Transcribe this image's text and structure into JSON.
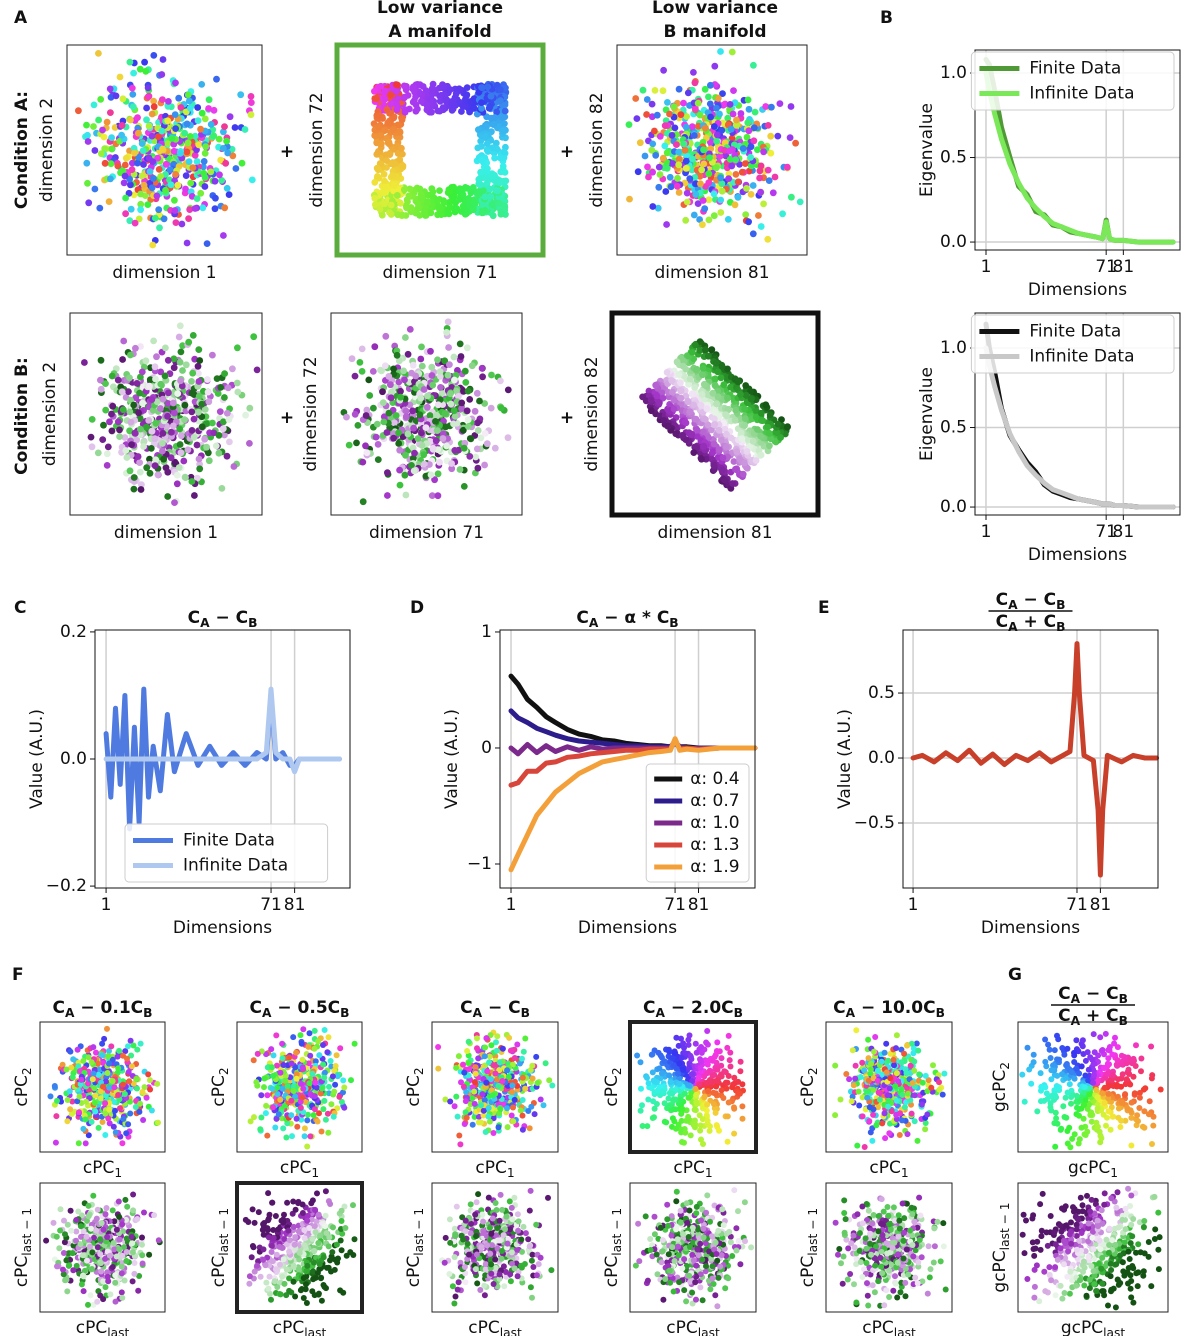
{
  "figure": {
    "panel_letters": [
      "A",
      "B",
      "C",
      "D",
      "E",
      "F",
      "G"
    ],
    "plus": "+",
    "panel_a": {
      "row_labels": [
        "Condition A:",
        "Condition B:"
      ],
      "highlight_color": "#5aad3c",
      "manifold_titles": [
        [
          "Low variance",
          "A manifold"
        ],
        [
          "Low variance",
          "B manifold"
        ]
      ],
      "axis_labels": [
        [
          "dimension 1",
          "dimension 2"
        ],
        [
          "dimension 71",
          "dimension 72"
        ],
        [
          "dimension 81",
          "dimension 82"
        ]
      ]
    },
    "panel_f": {
      "titles": [
        [
          {
            "text": "C"
          },
          {
            "text": "A",
            "sub": true
          },
          {
            "text": " − 0.1C"
          },
          {
            "text": "B",
            "sub": true
          }
        ],
        [
          {
            "text": "C"
          },
          {
            "text": "A",
            "sub": true
          },
          {
            "text": " − 0.5C"
          },
          {
            "text": "B",
            "sub": true
          }
        ],
        [
          {
            "text": "C"
          },
          {
            "text": "A",
            "sub": true
          },
          {
            "text": " − C"
          },
          {
            "text": "B",
            "sub": true
          }
        ],
        [
          {
            "text": "C"
          },
          {
            "text": "A",
            "sub": true
          },
          {
            "text": " − 2.0C"
          },
          {
            "text": "B",
            "sub": true
          }
        ],
        [
          {
            "text": "C"
          },
          {
            "text": "A",
            "sub": true
          },
          {
            "text": " − 10.0C"
          },
          {
            "text": "B",
            "sub": true
          }
        ]
      ],
      "xlabel_top": [
        {
          "text": "cPC"
        },
        {
          "text": "1",
          "sub": true
        }
      ],
      "ylabel_top": [
        {
          "text": "cPC"
        },
        {
          "text": "2",
          "sub": true
        }
      ],
      "xlabel_bottom": [
        {
          "text": "cPC"
        },
        {
          "text": "last",
          "sub": true
        }
      ],
      "ylabel_bottom": [
        {
          "text": "cPC"
        },
        {
          "text": "last − 1",
          "sub": true
        }
      ]
    },
    "panel_g": {
      "title_numerator": [
        {
          "text": "C"
        },
        {
          "text": "A",
          "sub": true
        },
        {
          "text": " − C"
        },
        {
          "text": "B",
          "sub": true
        }
      ],
      "title_denominator": [
        {
          "text": "C"
        },
        {
          "text": "A",
          "sub": true
        },
        {
          "text": " + C"
        },
        {
          "text": "B",
          "sub": true
        }
      ],
      "xlabel_top": [
        {
          "text": "gcPC"
        },
        {
          "text": "1",
          "sub": true
        }
      ],
      "ylabel_top": [
        {
          "text": "gcPC"
        },
        {
          "text": "2",
          "sub": true
        }
      ],
      "xlabel_bottom": [
        {
          "text": "gcPC"
        },
        {
          "text": "last",
          "sub": true
        }
      ],
      "ylabel_bottom": [
        {
          "text": "gcPC"
        },
        {
          "text": "last − 1",
          "sub": true
        }
      ]
    }
  },
  "chart_data": [
    {
      "type": "line",
      "xlabel": "Dimensions",
      "ylabel": "Eigenvalue",
      "x": [
        1,
        3,
        6,
        10,
        15,
        20,
        25,
        30,
        35,
        40,
        45,
        50,
        55,
        60,
        65,
        69,
        71,
        73,
        76,
        81,
        90,
        100,
        110
      ],
      "series": [
        {
          "name": "Finite Data",
          "color": "#4f9a36",
          "values": [
            1.08,
            1.05,
            0.9,
            0.68,
            0.5,
            0.33,
            0.28,
            0.18,
            0.16,
            0.1,
            0.09,
            0.06,
            0.05,
            0.04,
            0.03,
            0.02,
            0.13,
            0.02,
            0.01,
            0.01,
            0,
            0,
            0
          ]
        },
        {
          "name": "Infinite Data",
          "color": "#7be85a",
          "values": [
            1.0,
            0.89,
            0.76,
            0.61,
            0.46,
            0.35,
            0.26,
            0.2,
            0.15,
            0.11,
            0.09,
            0.07,
            0.05,
            0.04,
            0.03,
            0.02,
            0.12,
            0.02,
            0.01,
            0.01,
            0,
            0,
            0
          ]
        }
      ],
      "xlim": [
        -5.4,
        114
      ],
      "ylim": [
        -0.047,
        1.136
      ],
      "xticks": [
        1,
        71,
        81
      ],
      "yticks": [
        {
          "value": 0,
          "label": "0.0"
        },
        {
          "value": 0.5,
          "label": "0.5"
        },
        {
          "value": 1,
          "label": "1.0"
        }
      ],
      "grid": "both",
      "legend": "upper right"
    },
    {
      "type": "line",
      "xlabel": "Dimensions",
      "ylabel": "Eigenvalue",
      "x": [
        1,
        3,
        6,
        10,
        15,
        20,
        25,
        30,
        35,
        40,
        45,
        50,
        55,
        60,
        65,
        69,
        71,
        73,
        76,
        81,
        90,
        100,
        110
      ],
      "series": [
        {
          "name": "Finite Data",
          "color": "#111111",
          "values": [
            1.15,
            1.0,
            0.85,
            0.62,
            0.45,
            0.36,
            0.28,
            0.22,
            0.14,
            0.1,
            0.08,
            0.06,
            0.05,
            0.04,
            0.03,
            0.02,
            0.02,
            0.02,
            0.01,
            0.01,
            0,
            0,
            0
          ]
        },
        {
          "name": "Infinite Data",
          "color": "#c8c8c8",
          "values": [
            1.0,
            0.89,
            0.76,
            0.61,
            0.46,
            0.35,
            0.26,
            0.2,
            0.15,
            0.11,
            0.09,
            0.07,
            0.05,
            0.04,
            0.03,
            0.02,
            0.02,
            0.02,
            0.01,
            0.01,
            0,
            0,
            0
          ]
        }
      ],
      "xlim": [
        -5.4,
        114
      ],
      "ylim": [
        -0.05,
        1.22
      ],
      "xticks": [
        1,
        71,
        81
      ],
      "yticks": [
        {
          "value": 0,
          "label": "0.0"
        },
        {
          "value": 0.5,
          "label": "0.5"
        },
        {
          "value": 1,
          "label": "1.0"
        }
      ],
      "grid": "both",
      "legend": "upper right"
    },
    {
      "type": "line",
      "xlabel": "Dimensions",
      "ylabel": "Value (A.U.)",
      "title": [
        {
          "text": "C"
        },
        {
          "text": "A",
          "sub": true
        },
        {
          "text": " − C"
        },
        {
          "text": "B",
          "sub": true
        }
      ],
      "x": [
        1,
        3,
        5,
        7,
        9,
        11,
        13,
        15,
        17,
        19,
        21,
        24,
        27,
        30,
        35,
        40,
        45,
        50,
        55,
        60,
        65,
        69,
        71,
        73,
        76,
        79,
        81,
        83,
        86,
        90,
        95,
        100
      ],
      "series": [
        {
          "name": "Finite Data",
          "color": "#4f7be0",
          "values": [
            0.04,
            -0.06,
            0.08,
            -0.04,
            0.1,
            -0.11,
            0.05,
            -0.1,
            0.11,
            -0.06,
            0.02,
            -0.05,
            0.07,
            -0.02,
            0.04,
            -0.01,
            0.02,
            -0.01,
            0.01,
            -0.01,
            0.01,
            0,
            0.1,
            0,
            0.01,
            -0.01,
            -0.01,
            0,
            0,
            0,
            0,
            0
          ]
        },
        {
          "name": "Infinite Data",
          "color": "#aec8f0",
          "values": [
            0,
            0,
            0,
            0,
            0,
            0,
            0,
            0,
            0,
            0,
            0,
            0,
            0,
            0,
            0,
            0,
            0,
            0,
            0,
            0,
            0,
            0.01,
            0.11,
            0.01,
            0,
            0,
            -0.02,
            0,
            0,
            0,
            0,
            0
          ]
        }
      ],
      "xlim": [
        -3.7,
        104.5
      ],
      "ylim": [
        -0.203,
        0.203
      ],
      "xticks": [
        1,
        71,
        81
      ],
      "yticks": [
        {
          "value": -0.2,
          "label": "−0.2"
        },
        {
          "value": 0,
          "label": "0.0"
        },
        0.2
      ],
      "grid": "x",
      "legend": "lower left"
    },
    {
      "type": "line",
      "xlabel": "Dimensions",
      "ylabel": "Value (A.U.)",
      "title": [
        {
          "text": "C"
        },
        {
          "text": "A",
          "sub": true
        },
        {
          "text": " − α * C"
        },
        {
          "text": "B",
          "sub": true
        }
      ],
      "x": [
        1,
        4,
        8,
        12,
        16,
        20,
        25,
        30,
        35,
        40,
        45,
        50,
        55,
        60,
        65,
        69,
        71,
        73,
        76,
        81,
        90,
        100,
        105
      ],
      "series": [
        {
          "name": "α: 0.4",
          "color": "#111111",
          "values": [
            0.62,
            0.55,
            0.42,
            0.35,
            0.27,
            0.22,
            0.16,
            0.12,
            0.1,
            0.07,
            0.06,
            0.04,
            0.03,
            0.02,
            0.02,
            0.01,
            0.04,
            0.01,
            0.01,
            0,
            0,
            0,
            0
          ]
        },
        {
          "name": "α: 0.7",
          "color": "#2c1c8c",
          "values": [
            0.32,
            0.26,
            0.22,
            0.17,
            0.14,
            0.11,
            0.08,
            0.06,
            0.05,
            0.04,
            0.03,
            0.02,
            0.02,
            0.01,
            0.01,
            0.01,
            0.05,
            0.01,
            0,
            0,
            0,
            0,
            0
          ]
        },
        {
          "name": "α: 1.0",
          "color": "#7b2a8c",
          "values": [
            0,
            -0.05,
            0.03,
            -0.04,
            0.02,
            -0.03,
            0.01,
            -0.02,
            0.01,
            -0.01,
            0,
            0,
            0,
            0,
            0,
            0,
            0.06,
            0,
            0,
            -0.01,
            0,
            0,
            0
          ]
        },
        {
          "name": "α: 1.3",
          "color": "#d8453a",
          "values": [
            -0.32,
            -0.3,
            -0.2,
            -0.2,
            -0.13,
            -0.12,
            -0.08,
            -0.07,
            -0.05,
            -0.04,
            -0.03,
            -0.02,
            -0.02,
            -0.01,
            -0.01,
            -0.01,
            0.07,
            -0.01,
            0,
            -0.01,
            0,
            0,
            0
          ]
        },
        {
          "name": "α: 1.9",
          "color": "#f4a03a",
          "values": [
            -1.05,
            -0.92,
            -0.75,
            -0.58,
            -0.48,
            -0.38,
            -0.3,
            -0.22,
            -0.17,
            -0.12,
            -0.1,
            -0.08,
            -0.06,
            -0.04,
            -0.03,
            -0.02,
            0.08,
            -0.02,
            -0.01,
            -0.02,
            0,
            0,
            0
          ]
        }
      ],
      "xlim": [
        -3.7,
        105.1
      ],
      "ylim": [
        -1.207,
        1.017
      ],
      "xticks": [
        1,
        71,
        81
      ],
      "yticks": [
        {
          "value": -1,
          "label": "−1"
        },
        0,
        1
      ],
      "grid": "x",
      "legend": "lower right"
    },
    {
      "type": "line",
      "xlabel": "Dimensions",
      "ylabel": "Value (A.U.)",
      "title_numerator": [
        {
          "text": "C"
        },
        {
          "text": "A",
          "sub": true
        },
        {
          "text": " − C"
        },
        {
          "text": "B",
          "sub": true
        }
      ],
      "title_denominator": [
        {
          "text": "C"
        },
        {
          "text": "A",
          "sub": true
        },
        {
          "text": " + C"
        },
        {
          "text": "B",
          "sub": true
        }
      ],
      "x": [
        1,
        5,
        10,
        15,
        20,
        25,
        30,
        35,
        40,
        45,
        50,
        55,
        60,
        65,
        68,
        70,
        71,
        72,
        74,
        78,
        80,
        81,
        82,
        84,
        90,
        95,
        100,
        105
      ],
      "series": [
        {
          "color": "#c8402a",
          "values": [
            0,
            0.02,
            -0.03,
            0.04,
            -0.02,
            0.06,
            -0.04,
            0.03,
            -0.05,
            0.02,
            -0.02,
            0.04,
            -0.03,
            0.02,
            0.05,
            0.5,
            0.88,
            0.5,
            0.02,
            -0.02,
            -0.4,
            -0.9,
            -0.4,
            0.02,
            -0.03,
            0.02,
            0,
            0
          ]
        }
      ],
      "xlim": [
        -3.3,
        105.6
      ],
      "ylim": [
        -1.0,
        0.985
      ],
      "xticks": [
        1,
        71,
        81
      ],
      "yticks": [
        {
          "value": -0.5,
          "label": "−0.5"
        },
        {
          "value": 0,
          "label": "0.0"
        },
        {
          "value": 0.5,
          "label": "0.5"
        }
      ],
      "grid": "both"
    }
  ]
}
